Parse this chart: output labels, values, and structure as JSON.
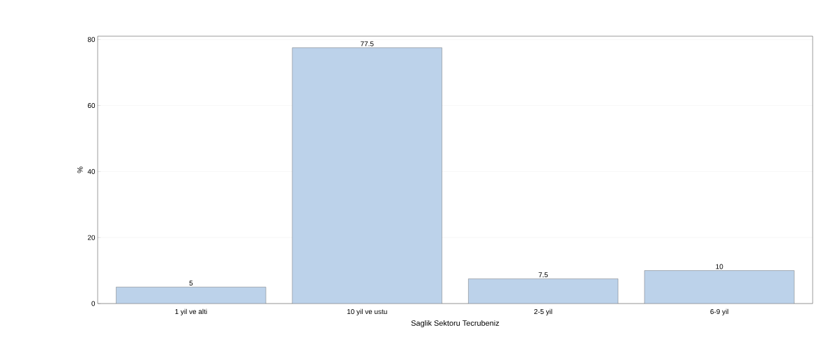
{
  "chart_data": {
    "type": "bar",
    "xlabel": "Saglik Sektoru Tecrubeniz",
    "ylabel": "%",
    "categories": [
      "1 yil ve alti",
      "10 yil ve ustu",
      "2-5 yil",
      "6-9 yil"
    ],
    "values": [
      5,
      77.5,
      7.5,
      10
    ],
    "color": "#bcd2ea",
    "ylim": [
      0,
      81
    ],
    "yticks": [
      0,
      20,
      40,
      60,
      80
    ],
    "grid": "y",
    "data_labels": true
  }
}
